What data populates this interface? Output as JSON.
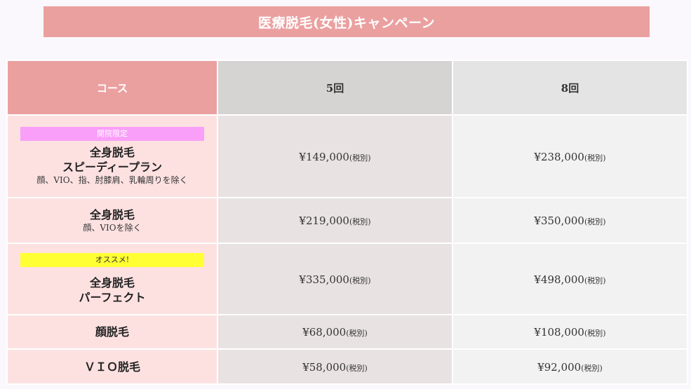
{
  "title": "医療脱毛(女性)キャンペーン",
  "table": {
    "headers": {
      "course": "コース",
      "five": "5回",
      "eight": "8回"
    },
    "rows": [
      {
        "badge": "開院限定",
        "name_line1": "全身脱毛",
        "name_line2": "スピーディープラン",
        "note": "顔、VIO、指、肘膝肩、乳輪周りを除く",
        "price5": "¥149,000",
        "price8": "¥238,000"
      },
      {
        "name_line1": "全身脱毛",
        "note": "顔、VIOを除く",
        "price5": "¥219,000",
        "price8": "¥350,000"
      },
      {
        "badge": "オススメ!",
        "name_line1": "全身脱毛",
        "name_line2": "パーフェクト",
        "price5": "¥335,000",
        "price8": "¥498,000"
      },
      {
        "name_line1": "顔脱毛",
        "price5": "¥68,000",
        "price8": "¥108,000"
      },
      {
        "name_line1": "ＶＩＯ脱毛",
        "price5": "¥58,000",
        "price8": "¥92,000"
      }
    ],
    "tax_label": "(税別)"
  },
  "colors": {
    "title_bg": "#eba0a0",
    "course_header_bg": "#eba0a0",
    "course_cell_bg": "#fde1e1",
    "badge_pink": "#f99ff9",
    "badge_yellow": "#ffff33"
  }
}
